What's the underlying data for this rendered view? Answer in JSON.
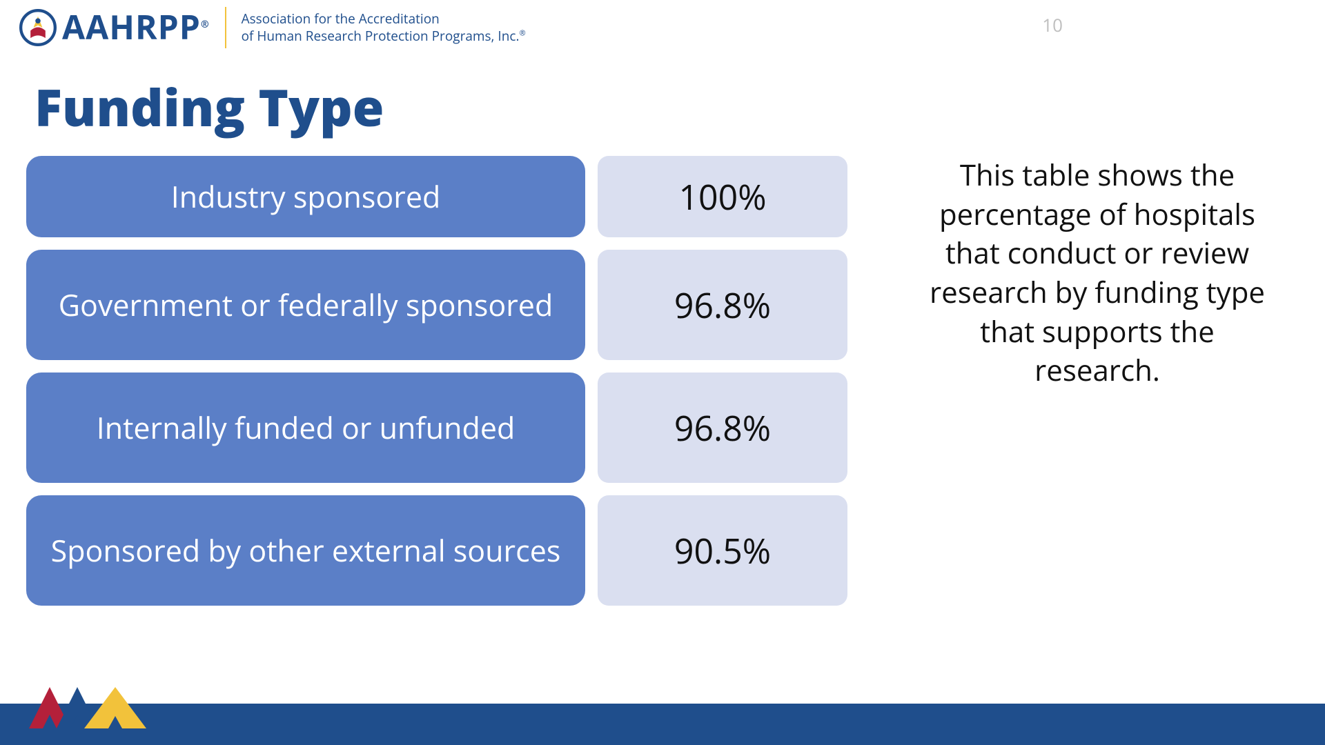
{
  "page_number": "10",
  "logo": {
    "acronym": "AAHRPP",
    "registered_mark": "®",
    "full_name_line1": "Association for the Accreditation",
    "full_name_line2": "of Human Research Protection Programs, Inc.",
    "colors": {
      "brand_blue": "#1f4e8c",
      "brand_yellow": "#f2c23b",
      "brand_red": "#b4203a"
    }
  },
  "title": "Funding Type",
  "description": "This table shows the percentage of hospitals that conduct or review research by funding type that supports the research.",
  "table": {
    "label_bg": "#5b7fc7",
    "value_bg": "#dadff0",
    "label_text_color": "#ffffff",
    "value_text_color": "#111111",
    "rows": [
      {
        "label": "Industry sponsored",
        "value": "100%",
        "lines": 1
      },
      {
        "label": "Government or federally sponsored",
        "value": "96.8%",
        "lines": 2
      },
      {
        "label": "Internally funded or unfunded",
        "value": "96.8%",
        "lines": 2
      },
      {
        "label": "Sponsored by other external sources",
        "value": "90.5%",
        "lines": 2
      }
    ]
  },
  "footer": {
    "bar_color": "#1f4e8c",
    "chevron_colors": [
      "#b4203a",
      "#1f4e8c",
      "#f2c23b"
    ]
  }
}
